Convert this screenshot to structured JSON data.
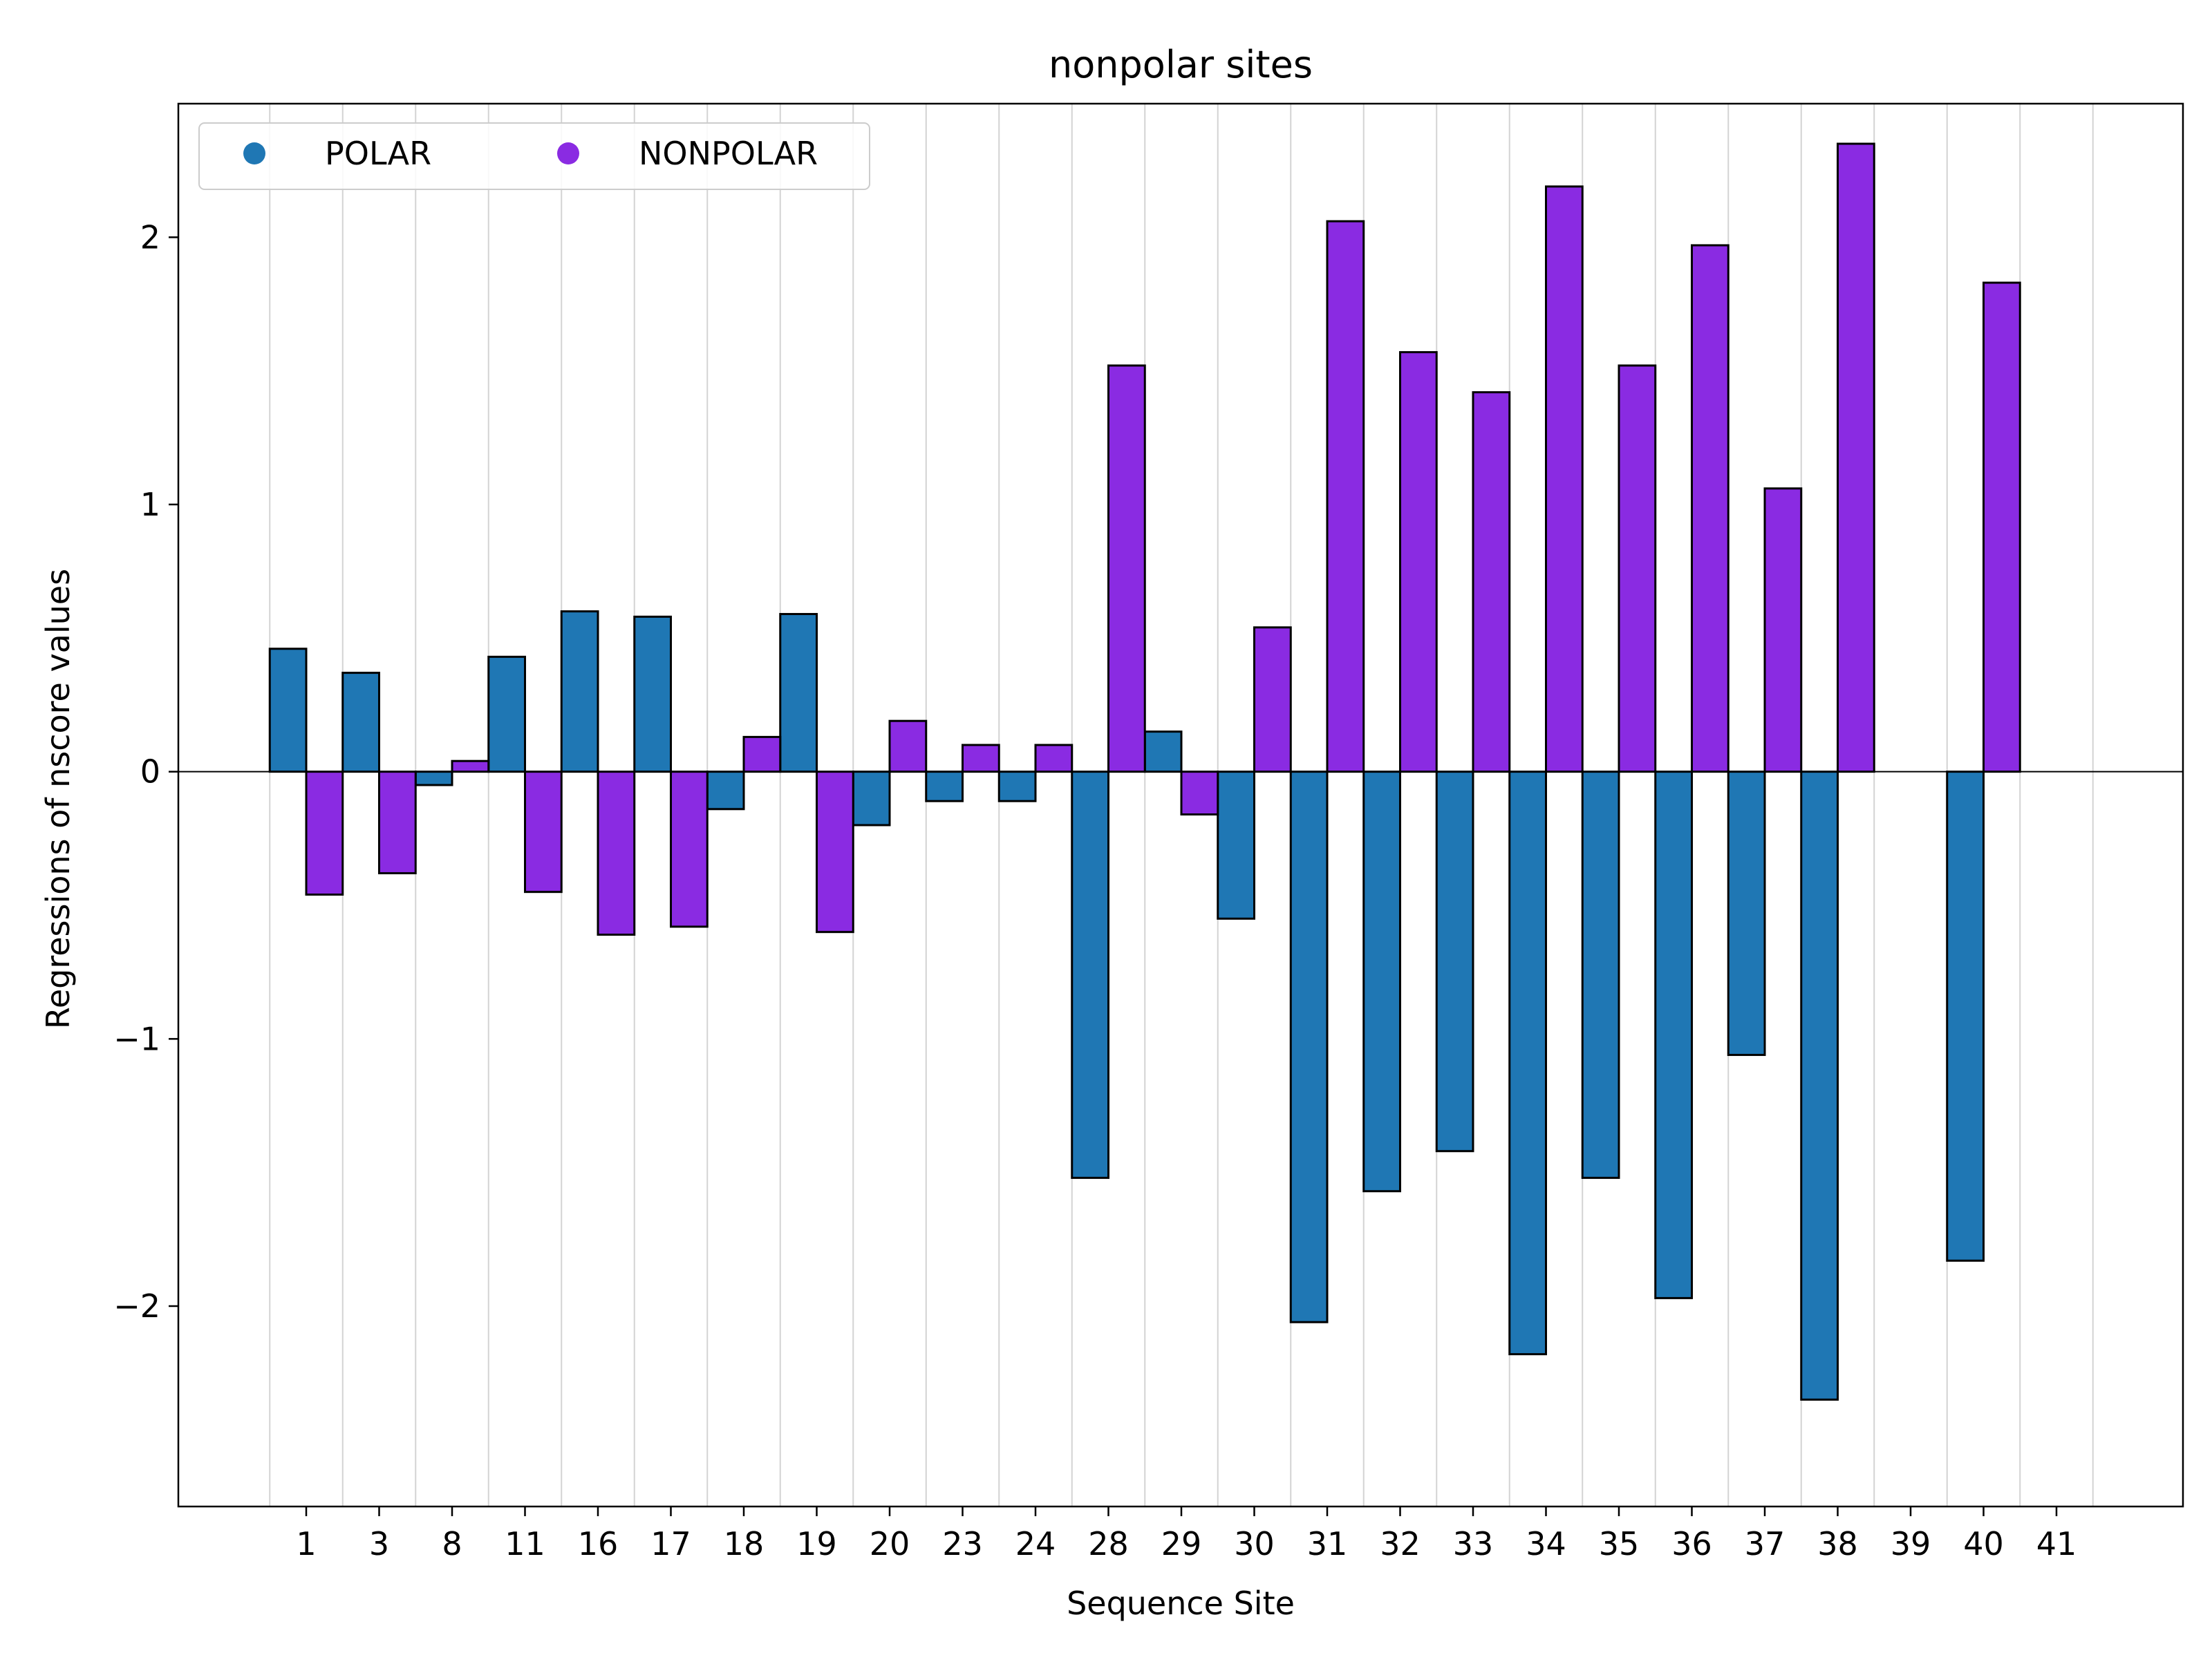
{
  "chart_data": {
    "type": "bar",
    "title": "nonpolar sites",
    "xlabel": "Sequence Site",
    "ylabel": "Regressions of nscore values",
    "categories": [
      "1",
      "3",
      "8",
      "11",
      "16",
      "17",
      "18",
      "19",
      "20",
      "23",
      "24",
      "28",
      "29",
      "30",
      "31",
      "32",
      "33",
      "34",
      "35",
      "36",
      "37",
      "38",
      "39",
      "40",
      "41"
    ],
    "series": [
      {
        "name": "POLAR",
        "color": "#1f77b4",
        "values": [
          0.46,
          0.37,
          -0.05,
          0.43,
          0.6,
          0.58,
          -0.14,
          0.59,
          -0.2,
          -0.11,
          -0.11,
          -1.52,
          0.15,
          -0.55,
          -2.06,
          -1.57,
          -1.42,
          -2.18,
          -1.52,
          -1.97,
          -1.06,
          -2.35,
          null,
          -1.83,
          null
        ]
      },
      {
        "name": "NONPOLAR",
        "color": "#8a2be2",
        "values": [
          -0.46,
          -0.38,
          0.04,
          -0.45,
          -0.61,
          -0.58,
          0.13,
          -0.6,
          0.19,
          0.1,
          0.1,
          1.52,
          -0.16,
          0.54,
          2.06,
          1.57,
          1.42,
          2.19,
          1.52,
          1.97,
          1.06,
          2.35,
          null,
          1.83,
          null
        ]
      }
    ],
    "yticks": [
      -2,
      -1,
      0,
      1,
      2
    ],
    "ytick_labels": [
      "−2",
      "−1",
      "0",
      "1",
      "2"
    ],
    "ylim": [
      -2.75,
      2.5
    ],
    "grid": "vertical",
    "legend": "upper-left"
  }
}
